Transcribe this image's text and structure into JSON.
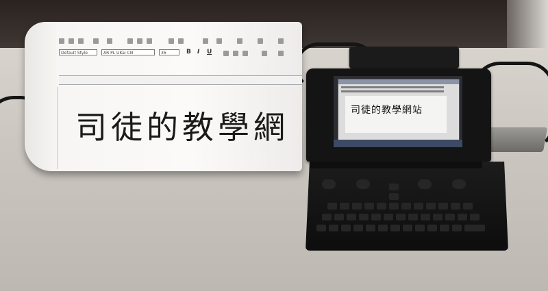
{
  "paper": {
    "font_dropdown": "Default Style",
    "typeface_dropdown": "AR PL UKai CN",
    "size_dropdown": "36",
    "bold_glyph": "B",
    "italic_glyph": "I",
    "underline_glyph": "U",
    "headline": "司徒的教學網"
  },
  "device_screen": {
    "headline": "司徒的教學網站"
  },
  "colors": {
    "device_body": "#141414",
    "paper": "#f7f6f4",
    "desk": "#cbc6c0"
  }
}
